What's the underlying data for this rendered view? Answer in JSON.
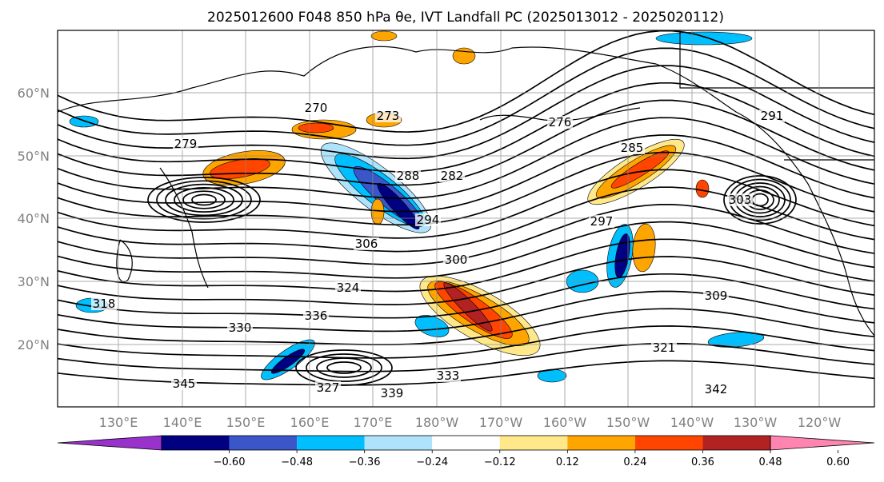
{
  "title": "2025012600 F048 850 hPa θe, IVT Landfall PC (2025013012 - 2025020112)",
  "map": {
    "lat_labels": [
      "60°N",
      "50°N",
      "40°N",
      "30°N",
      "20°N"
    ],
    "lon_labels": [
      "130°E",
      "140°E",
      "150°E",
      "160°E",
      "170°E",
      "180°W",
      "170°W",
      "160°W",
      "150°W",
      "140°W",
      "130°W",
      "120°W"
    ],
    "contour_labels": [
      "270",
      "273",
      "276",
      "279",
      "282",
      "285",
      "288",
      "291",
      "294",
      "297",
      "300",
      "303",
      "306",
      "309",
      "318",
      "321",
      "324",
      "327",
      "330",
      "333",
      "336",
      "339",
      "342",
      "345"
    ],
    "grid": true,
    "land_color": "#ffffff",
    "contour_color": "#000000"
  },
  "colorbar": {
    "tick_labels": [
      "−0.60",
      "−0.48",
      "−0.36",
      "−0.24",
      "−0.12",
      "0.12",
      "0.24",
      "0.36",
      "0.48",
      "0.60"
    ],
    "colors": [
      "#9932cc",
      "#000080",
      "#3a56c8",
      "#00bfff",
      "#aee3fb",
      "#ffffff",
      "#ffe88a",
      "#ffa500",
      "#ff4500",
      "#b22222",
      "#ff85b0"
    ],
    "extend": "both"
  }
}
